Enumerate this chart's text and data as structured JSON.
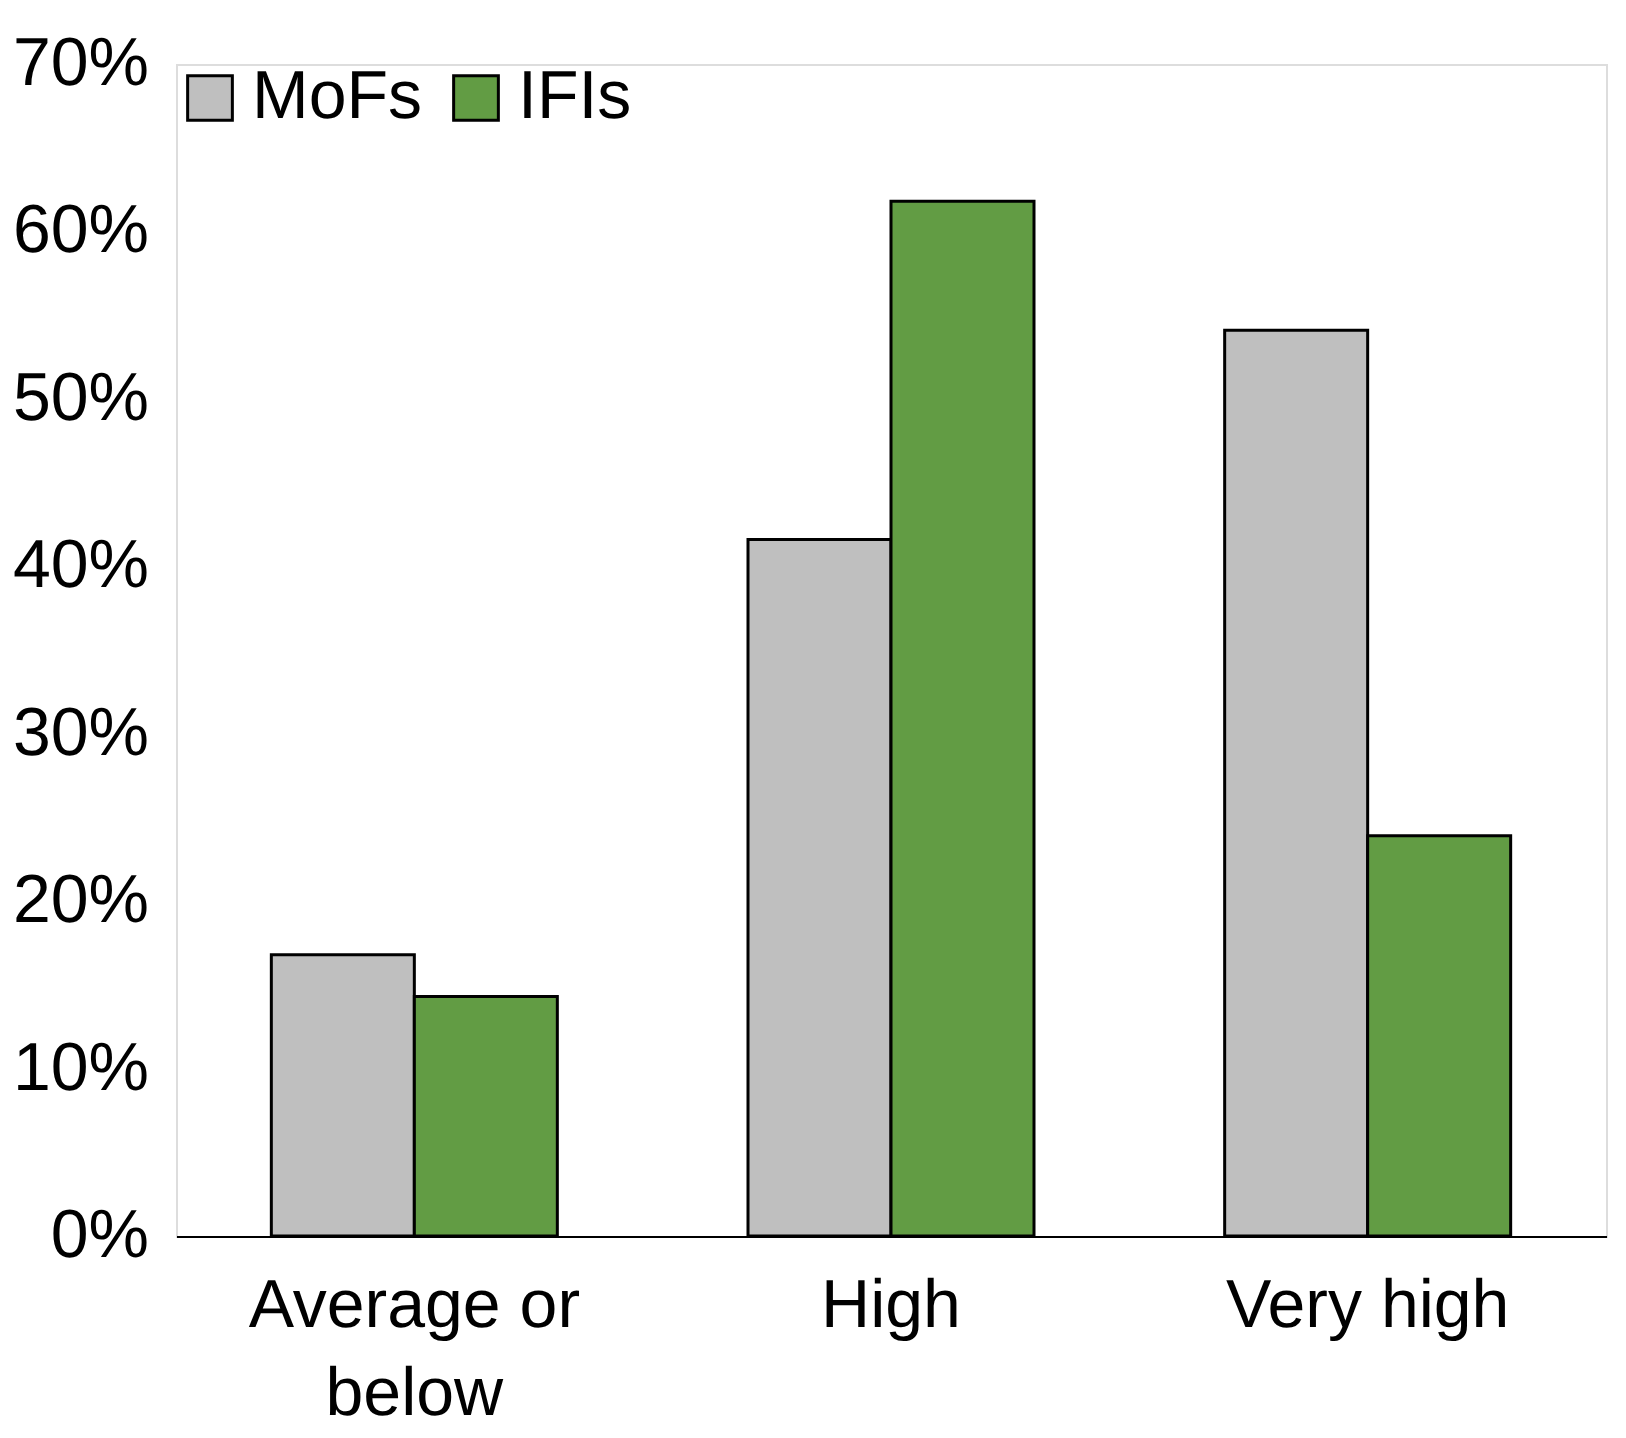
{
  "chart_data": {
    "type": "bar",
    "categories": [
      "Average or below",
      "High",
      "Very high"
    ],
    "series": [
      {
        "name": "MoFs",
        "color": "#bfbfbf",
        "values": [
          16.8,
          41.6,
          54.1
        ]
      },
      {
        "name": "IFIs",
        "color": "#629c44",
        "values": [
          14.3,
          61.8,
          23.9
        ]
      }
    ],
    "ylim": [
      0,
      70
    ],
    "yticks": [
      {
        "value": 0,
        "label": "0%"
      },
      {
        "value": 10,
        "label": "10%"
      },
      {
        "value": 20,
        "label": "20%"
      },
      {
        "value": 30,
        "label": "30%"
      },
      {
        "value": 40,
        "label": "40%"
      },
      {
        "value": 50,
        "label": "50%"
      },
      {
        "value": 60,
        "label": "60%"
      },
      {
        "value": 70,
        "label": "70%"
      }
    ],
    "grid": false,
    "legend": "top left"
  }
}
